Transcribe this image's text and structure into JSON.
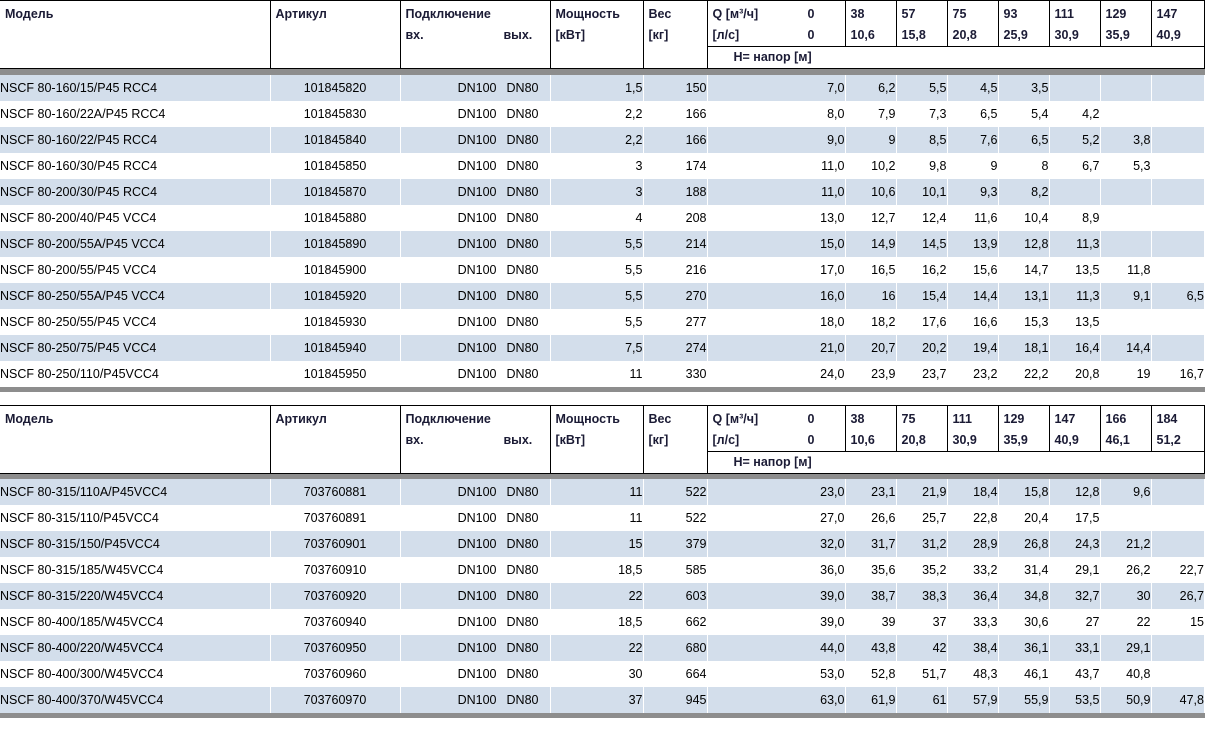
{
  "colors": {
    "row_alt": "#d3deeb",
    "separator_bar": "#8d8d8d",
    "header_text": "#1b1b35",
    "border": "#000000"
  },
  "tables": [
    {
      "headers": {
        "model": "Модель",
        "article": "Артикул",
        "connection": "Подключение",
        "conn_in": "вх.",
        "conn_out": "вых.",
        "power1": "Мощность",
        "power2": "[кВт]",
        "weight1": "Вес",
        "weight2": "[кг]",
        "q_row1_label": "Q [м³/ч]",
        "q_row1_zero": "0",
        "q_row2_label": "[л/с]",
        "q_row2_zero": "0",
        "head_label": "Н= напор [м]",
        "q_pairs": [
          [
            "38",
            "10,6"
          ],
          [
            "57",
            "15,8"
          ],
          [
            "75",
            "20,8"
          ],
          [
            "93",
            "25,9"
          ],
          [
            "111",
            "30,9"
          ],
          [
            "129",
            "35,9"
          ],
          [
            "147",
            "40,9"
          ]
        ]
      },
      "rows": [
        {
          "model": "NSCF 80-160/15/P45 RCC4",
          "article": "101845820",
          "conn": [
            "DN100",
            "DN80"
          ],
          "power": "1,5",
          "weight": "150",
          "q": [
            "7,0",
            "6,2",
            "5,5",
            "4,5",
            "3,5",
            "",
            "",
            ""
          ]
        },
        {
          "model": "NSCF 80-160/22A/P45 RCC4",
          "article": "101845830",
          "conn": [
            "DN100",
            "DN80"
          ],
          "power": "2,2",
          "weight": "166",
          "q": [
            "8,0",
            "7,9",
            "7,3",
            "6,5",
            "5,4",
            "4,2",
            "",
            ""
          ]
        },
        {
          "model": "NSCF 80-160/22/P45 RCC4",
          "article": "101845840",
          "conn": [
            "DN100",
            "DN80"
          ],
          "power": "2,2",
          "weight": "166",
          "q": [
            "9,0",
            "9",
            "8,5",
            "7,6",
            "6,5",
            "5,2",
            "3,8",
            ""
          ]
        },
        {
          "model": "NSCF 80-160/30/P45 RCC4",
          "article": "101845850",
          "conn": [
            "DN100",
            "DN80"
          ],
          "power": "3",
          "weight": "174",
          "q": [
            "11,0",
            "10,2",
            "9,8",
            "9",
            "8",
            "6,7",
            "5,3",
            ""
          ]
        },
        {
          "model": "NSCF 80-200/30/P45 RCC4",
          "article": "101845870",
          "conn": [
            "DN100",
            "DN80"
          ],
          "power": "3",
          "weight": "188",
          "q": [
            "11,0",
            "10,6",
            "10,1",
            "9,3",
            "8,2",
            "",
            "",
            ""
          ]
        },
        {
          "model": "NSCF 80-200/40/P45 VCC4",
          "article": "101845880",
          "conn": [
            "DN100",
            "DN80"
          ],
          "power": "4",
          "weight": "208",
          "q": [
            "13,0",
            "12,7",
            "12,4",
            "11,6",
            "10,4",
            "8,9",
            "",
            ""
          ]
        },
        {
          "model": "NSCF 80-200/55A/P45 VCC4",
          "article": "101845890",
          "conn": [
            "DN100",
            "DN80"
          ],
          "power": "5,5",
          "weight": "214",
          "q": [
            "15,0",
            "14,9",
            "14,5",
            "13,9",
            "12,8",
            "11,3",
            "",
            ""
          ]
        },
        {
          "model": "NSCF 80-200/55/P45 VCC4",
          "article": "101845900",
          "conn": [
            "DN100",
            "DN80"
          ],
          "power": "5,5",
          "weight": "216",
          "q": [
            "17,0",
            "16,5",
            "16,2",
            "15,6",
            "14,7",
            "13,5",
            "11,8",
            ""
          ]
        },
        {
          "model": "NSCF 80-250/55A/P45 VCC4",
          "article": "101845920",
          "conn": [
            "DN100",
            "DN80"
          ],
          "power": "5,5",
          "weight": "270",
          "q": [
            "16,0",
            "16",
            "15,4",
            "14,4",
            "13,1",
            "11,3",
            "9,1",
            "6,5"
          ]
        },
        {
          "model": "NSCF 80-250/55/P45 VCC4",
          "article": "101845930",
          "conn": [
            "DN100",
            "DN80"
          ],
          "power": "5,5",
          "weight": "277",
          "q": [
            "18,0",
            "18,2",
            "17,6",
            "16,6",
            "15,3",
            "13,5",
            "",
            ""
          ]
        },
        {
          "model": "NSCF 80-250/75/P45 VCC4",
          "article": "101845940",
          "conn": [
            "DN100",
            "DN80"
          ],
          "power": "7,5",
          "weight": "274",
          "q": [
            "21,0",
            "20,7",
            "20,2",
            "19,4",
            "18,1",
            "16,4",
            "14,4",
            ""
          ]
        },
        {
          "model": "NSCF 80-250/110/P45VCC4",
          "article": "101845950",
          "conn": [
            "DN100",
            "DN80"
          ],
          "power": "11",
          "weight": "330",
          "q": [
            "24,0",
            "23,9",
            "23,7",
            "23,2",
            "22,2",
            "20,8",
            "19",
            "16,7"
          ]
        }
      ]
    },
    {
      "headers": {
        "model": "Модель",
        "article": "Артикул",
        "connection": "Подключение",
        "conn_in": "вх.",
        "conn_out": "вых.",
        "power1": "Мощность",
        "power2": "[кВт]",
        "weight1": "Вес",
        "weight2": "[кг]",
        "q_row1_label": "Q [м³/ч]",
        "q_row1_zero": "0",
        "q_row2_label": "[л/с]",
        "q_row2_zero": "0",
        "head_label": "Н= напор [м]",
        "q_pairs": [
          [
            "38",
            "10,6"
          ],
          [
            "75",
            "20,8"
          ],
          [
            "111",
            "30,9"
          ],
          [
            "129",
            "35,9"
          ],
          [
            "147",
            "40,9"
          ],
          [
            "166",
            "46,1"
          ],
          [
            "184",
            "51,2"
          ]
        ]
      },
      "rows": [
        {
          "model": "NSCF 80-315/110A/P45VCC4",
          "article": "703760881",
          "conn": [
            "DN100",
            "DN80"
          ],
          "power": "11",
          "weight": "522",
          "q": [
            "23,0",
            "23,1",
            "21,9",
            "18,4",
            "15,8",
            "12,8",
            "9,6",
            ""
          ]
        },
        {
          "model": "NSCF 80-315/110/P45VCC4",
          "article": "703760891",
          "conn": [
            "DN100",
            "DN80"
          ],
          "power": "11",
          "weight": "522",
          "q": [
            "27,0",
            "26,6",
            "25,7",
            "22,8",
            "20,4",
            "17,5",
            "",
            ""
          ]
        },
        {
          "model": "NSCF 80-315/150/P45VCC4",
          "article": "703760901",
          "conn": [
            "DN100",
            "DN80"
          ],
          "power": "15",
          "weight": "379",
          "q": [
            "32,0",
            "31,7",
            "31,2",
            "28,9",
            "26,8",
            "24,3",
            "21,2",
            ""
          ]
        },
        {
          "model": "NSCF 80-315/185/W45VCC4",
          "article": "703760910",
          "conn": [
            "DN100",
            "DN80"
          ],
          "power": "18,5",
          "weight": "585",
          "q": [
            "36,0",
            "35,6",
            "35,2",
            "33,2",
            "31,4",
            "29,1",
            "26,2",
            "22,7"
          ]
        },
        {
          "model": "NSCF 80-315/220/W45VCC4",
          "article": "703760920",
          "conn": [
            "DN100",
            "DN80"
          ],
          "power": "22",
          "weight": "603",
          "q": [
            "39,0",
            "38,7",
            "38,3",
            "36,4",
            "34,8",
            "32,7",
            "30",
            "26,7"
          ]
        },
        {
          "model": "NSCF 80-400/185/W45VCC4",
          "article": "703760940",
          "conn": [
            "DN100",
            "DN80"
          ],
          "power": "18,5",
          "weight": "662",
          "q": [
            "39,0",
            "39",
            "37",
            "33,3",
            "30,6",
            "27",
            "22",
            "15"
          ]
        },
        {
          "model": "NSCF 80-400/220/W45VCC4",
          "article": "703760950",
          "conn": [
            "DN100",
            "DN80"
          ],
          "power": "22",
          "weight": "680",
          "q": [
            "44,0",
            "43,8",
            "42",
            "38,4",
            "36,1",
            "33,1",
            "29,1",
            ""
          ]
        },
        {
          "model": "NSCF 80-400/300/W45VCC4",
          "article": "703760960",
          "conn": [
            "DN100",
            "DN80"
          ],
          "power": "30",
          "weight": "664",
          "q": [
            "53,0",
            "52,8",
            "51,7",
            "48,3",
            "46,1",
            "43,7",
            "40,8",
            ""
          ]
        },
        {
          "model": "NSCF 80-400/370/W45VCC4",
          "article": "703760970",
          "conn": [
            "DN100",
            "DN80"
          ],
          "power": "37",
          "weight": "945",
          "q": [
            "63,0",
            "61,9",
            "61",
            "57,9",
            "55,9",
            "53,5",
            "50,9",
            "47,8"
          ]
        }
      ]
    }
  ]
}
